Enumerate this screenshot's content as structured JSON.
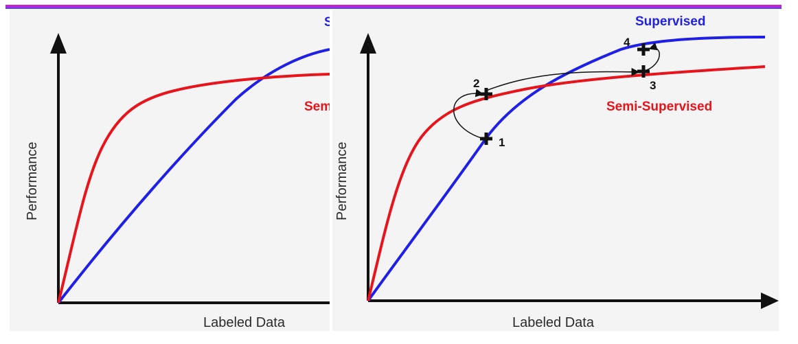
{
  "chart_data": [
    {
      "type": "line",
      "xlabel": "Labeled Data",
      "ylabel": "Performance",
      "series": [
        {
          "name": "S",
          "color": "#1f1fe6"
        },
        {
          "name": "Semi",
          "color": "#e8141c"
        }
      ]
    },
    {
      "type": "line",
      "xlabel": "Labeled Data",
      "ylabel": "Performance",
      "series": [
        {
          "name": "Supervised",
          "color": "#1f1fe6"
        },
        {
          "name": "Semi-Supervised",
          "color": "#e8141c"
        }
      ],
      "annotations": [
        {
          "label": "1",
          "series": "Supervised"
        },
        {
          "label": "2",
          "series": "Semi-Supervised"
        },
        {
          "label": "3",
          "series": "Semi-Supervised"
        },
        {
          "label": "4",
          "series": "Supervised"
        }
      ]
    }
  ]
}
